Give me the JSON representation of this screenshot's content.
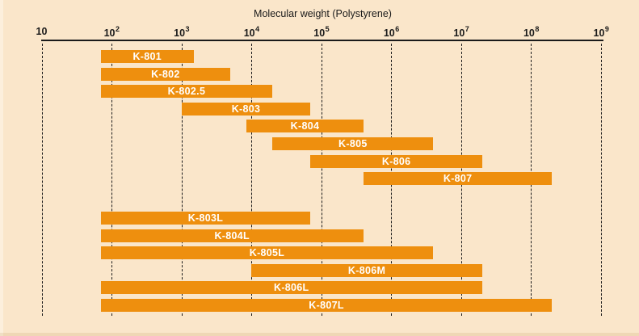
{
  "chart_data": {
    "type": "bar",
    "subtype": "horizontal-range-bars",
    "title": "Molecular weight (Polystyrene)",
    "xlabel": "Molecular weight (Polystyrene)",
    "ylabel": "",
    "x_scale": "log10",
    "xlim": [
      10,
      1000000000
    ],
    "grid": "vertical-dashed",
    "legend": "none",
    "x_ticks": [
      {
        "base": "10",
        "sup": "",
        "value": 10
      },
      {
        "base": "10",
        "sup": "2",
        "value": 100
      },
      {
        "base": "10",
        "sup": "3",
        "value": 1000
      },
      {
        "base": "10",
        "sup": "4",
        "value": 10000
      },
      {
        "base": "10",
        "sup": "5",
        "value": 100000
      },
      {
        "base": "10",
        "sup": "6",
        "value": 1000000
      },
      {
        "base": "10",
        "sup": "7",
        "value": 10000000
      },
      {
        "base": "10",
        "sup": "8",
        "value": 100000000
      },
      {
        "base": "10",
        "sup": "9",
        "value": 1000000000
      }
    ],
    "bars": [
      {
        "label": "K-801",
        "min": 70,
        "max": 1500,
        "group": 0,
        "row": 0
      },
      {
        "label": "K-802",
        "min": 70,
        "max": 5000,
        "group": 0,
        "row": 1
      },
      {
        "label": "K-802.5",
        "min": 70,
        "max": 20000,
        "group": 0,
        "row": 2
      },
      {
        "label": "K-803",
        "min": 1000,
        "max": 70000,
        "group": 0,
        "row": 3
      },
      {
        "label": "K-804",
        "min": 8500,
        "max": 400000,
        "group": 0,
        "row": 4
      },
      {
        "label": "K-805",
        "min": 20000,
        "max": 4000000,
        "group": 0,
        "row": 5
      },
      {
        "label": "K-806",
        "min": 70000,
        "max": 20000000,
        "group": 0,
        "row": 6
      },
      {
        "label": "K-807",
        "min": 400000,
        "max": 200000000,
        "group": 0,
        "row": 7
      },
      {
        "label": "K-803L",
        "min": 70,
        "max": 70000,
        "group": 1,
        "row": 0
      },
      {
        "label": "K-804L",
        "min": 70,
        "max": 400000,
        "group": 1,
        "row": 1
      },
      {
        "label": "K-805L",
        "min": 70,
        "max": 4000000,
        "group": 1,
        "row": 2
      },
      {
        "label": "K-806M",
        "min": 10000,
        "max": 20000000,
        "group": 1,
        "row": 3
      },
      {
        "label": "K-806L",
        "min": 70,
        "max": 20000000,
        "group": 1,
        "row": 4
      },
      {
        "label": "K-807L",
        "min": 70,
        "max": 200000000,
        "group": 1,
        "row": 5
      }
    ],
    "colors": {
      "bar": "#EE8F0E",
      "background": "#FAE6CA",
      "text": "#1A1A1A",
      "bar_label": "#FFFFFF",
      "gridline": "#1C1C1C"
    }
  }
}
